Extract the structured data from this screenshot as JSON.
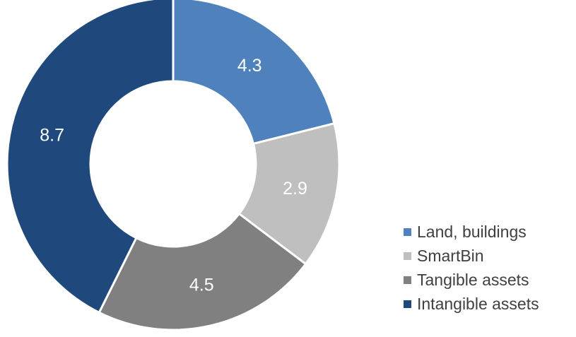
{
  "chart_data": {
    "type": "pie",
    "variant": "donut",
    "categories": [
      "Land, buildings",
      "SmartBin",
      "Tangible assets",
      "Intangible assets"
    ],
    "values": [
      4.3,
      2.9,
      4.5,
      8.7
    ],
    "value_labels": [
      "4.3",
      "2.9",
      "4.5",
      "8.7"
    ],
    "colors": [
      "#4f81bd",
      "#bfbfbf",
      "#808080",
      "#1f497d"
    ],
    "legend_position": "bottom-right",
    "start_angle": "12 o'clock",
    "direction": "clockwise"
  }
}
